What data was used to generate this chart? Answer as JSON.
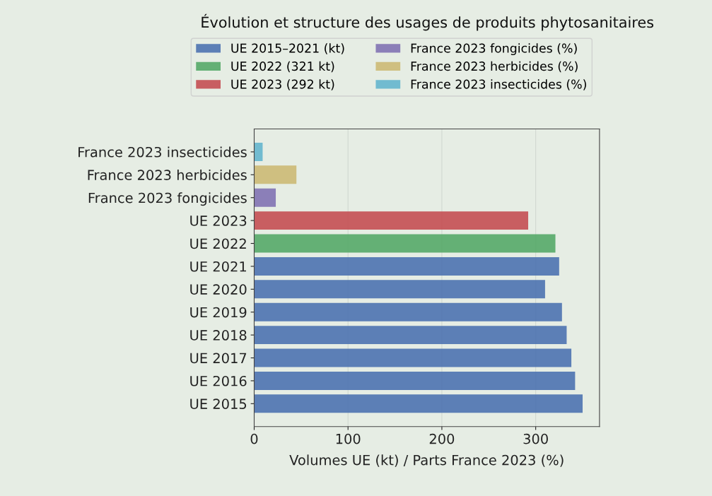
{
  "chart_data": {
    "type": "bar",
    "orientation": "horizontal",
    "title": "Évolution et structure des usages de produits phytosanitaires",
    "xlabel": "Volumes UE (kt) / Parts France 2023 (%)",
    "categories": [
      "France 2023 insecticides",
      "France 2023 herbicides",
      "France 2023 fongicides",
      "UE 2023",
      "UE 2022",
      "UE 2021",
      "UE 2020",
      "UE 2019",
      "UE 2018",
      "UE 2017",
      "UE 2016",
      "UE 2015"
    ],
    "series": [
      {
        "name": "UE 2015–2021 (kt)",
        "color": "#4c72b0",
        "values": [
          null,
          null,
          null,
          null,
          null,
          325,
          310,
          328,
          333,
          338,
          342,
          350
        ]
      },
      {
        "name": "UE 2022 (321 kt)",
        "color": "#55a868",
        "values": [
          null,
          null,
          null,
          null,
          321,
          null,
          null,
          null,
          null,
          null,
          null,
          null
        ]
      },
      {
        "name": "UE 2023 (292 kt)",
        "color": "#c44e52",
        "values": [
          null,
          null,
          null,
          292,
          null,
          null,
          null,
          null,
          null,
          null,
          null,
          null
        ]
      },
      {
        "name": "France 2023 fongicides (%)",
        "color": "#8172b2",
        "values": [
          null,
          null,
          23,
          null,
          null,
          null,
          null,
          null,
          null,
          null,
          null,
          null
        ]
      },
      {
        "name": "France 2023 herbicides (%)",
        "color": "#ccb974",
        "values": [
          null,
          45,
          null,
          null,
          null,
          null,
          null,
          null,
          null,
          null,
          null,
          null
        ]
      },
      {
        "name": "France 2023 insecticides (%)",
        "color": "#64b5cd",
        "values": [
          9,
          null,
          null,
          null,
          null,
          null,
          null,
          null,
          null,
          null,
          null,
          null
        ]
      }
    ],
    "xlim": [
      0,
      368
    ],
    "xticks": [
      0,
      100,
      200,
      300
    ],
    "grid": "x",
    "legend": "top"
  }
}
